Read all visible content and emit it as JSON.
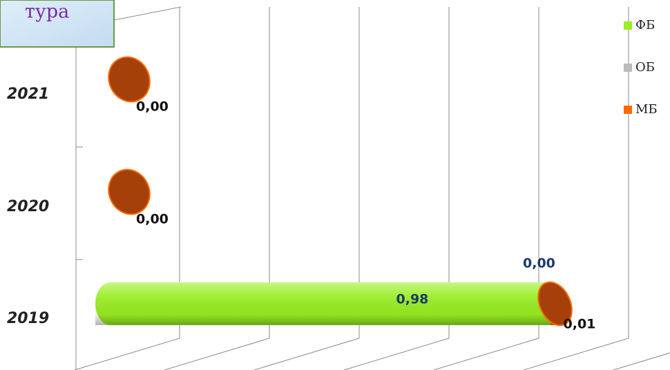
{
  "chart_data": {
    "type": "bar",
    "orientation": "horizontal",
    "stacked": true,
    "title": "тура",
    "categories": [
      "2021",
      "2020",
      "2019"
    ],
    "series": [
      {
        "name": "ФБ",
        "color": "#99ee22",
        "values": [
          null,
          null,
          0.98
        ],
        "value_labels": [
          null,
          null,
          "0,98"
        ]
      },
      {
        "name": "ОБ",
        "color": "#bbbbbb",
        "values": [
          null,
          null,
          0
        ],
        "value_labels": [
          null,
          null,
          "0,00"
        ]
      },
      {
        "name": "МБ",
        "color": "#ff6a00",
        "values": [
          0,
          0,
          0.01
        ],
        "value_labels": [
          "0,00",
          "0,00",
          "0,01"
        ]
      }
    ],
    "xlim": [
      0,
      1.2
    ],
    "xticks": [
      0,
      0.2,
      0.4,
      0.6,
      0.8,
      1,
      1.2
    ],
    "grid": true,
    "legend": "right"
  }
}
